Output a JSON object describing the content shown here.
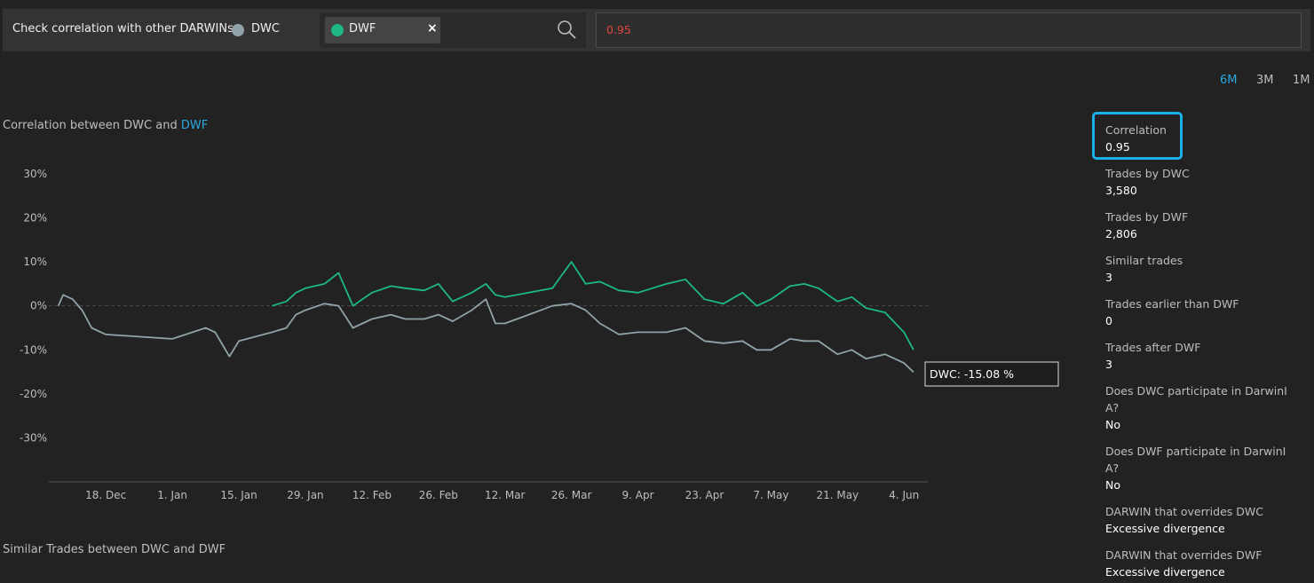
{
  "toolbar": {
    "label": "Check correlation with other DARWINs:",
    "close": "×",
    "input_value": "0.95"
  },
  "periods": [
    "6M",
    "3M",
    "1M"
  ],
  "chart_data": {
    "type": "line",
    "title": "Correlation between DWC and",
    "title_highlight": "DWF",
    "x": [
      "8. Dec",
      "9. Dec",
      "11. Dec",
      "13. Dec",
      "15. Dec",
      "18. Dec",
      "25. Dec",
      "1. Jan",
      "8. Jan",
      "10. Jan",
      "13. Jan",
      "15. Jan",
      "22. Jan",
      "25. Jan",
      "27. Jan",
      "29. Jan",
      "2. Feb",
      "5. Feb",
      "8. Feb",
      "12. Feb",
      "16. Feb",
      "19. Feb",
      "23. Feb",
      "26. Feb",
      "1. Mar",
      "5. Mar",
      "8. Mar",
      "10. Mar",
      "12. Mar",
      "17. Mar",
      "22. Mar",
      "26. Mar",
      "29. Mar",
      "1. Apr",
      "5. Apr",
      "9. Apr",
      "15. Apr",
      "19. Apr",
      "23. Apr",
      "27. Apr",
      "1. May",
      "4. May",
      "7. May",
      "11. May",
      "14. May",
      "17. May",
      "21. May",
      "24. May",
      "27. May",
      "31. May",
      "4. Jun",
      "6. Jun"
    ],
    "series": [
      {
        "name": "DWC",
        "color": "#8fa3a8",
        "values": [
          0,
          2.5,
          1.5,
          -1,
          -5,
          -6.5,
          -7,
          -7.5,
          -5,
          -6,
          -11.5,
          -8,
          -6,
          -5,
          -2,
          -1,
          0.5,
          0,
          -5,
          -3,
          -2,
          -3,
          -3,
          -2,
          -3.5,
          -1,
          1.5,
          -4,
          -4,
          -2,
          0,
          0.5,
          -1,
          -4,
          -6.5,
          -6,
          -6,
          -5,
          -8,
          -8.5,
          -8,
          -10,
          -10,
          -7.5,
          -8,
          -8,
          -11,
          -10,
          -12,
          -11,
          -13,
          -15.08
        ]
      },
      {
        "name": "DWF",
        "color": "#1db884",
        "values": [
          null,
          null,
          null,
          null,
          null,
          null,
          null,
          null,
          null,
          null,
          null,
          null,
          0,
          1,
          3,
          4,
          5,
          7.5,
          0,
          3,
          4.5,
          4,
          3.5,
          5,
          1,
          3,
          5,
          2.5,
          2,
          3,
          4,
          10,
          5,
          5.5,
          3.5,
          3,
          5,
          6,
          1.5,
          0.5,
          3,
          0,
          1.5,
          4.5,
          5,
          4,
          1,
          2,
          -0.5,
          -1.5,
          -6,
          -10
        ]
      }
    ],
    "xlim": [
      "6. Dec",
      "9. Jun"
    ],
    "xticks": [
      "18. Dec",
      "1. Jan",
      "15. Jan",
      "29. Jan",
      "12. Feb",
      "26. Feb",
      "12. Mar",
      "26. Mar",
      "9. Apr",
      "23. Apr",
      "7. May",
      "21. May",
      "4. Jun"
    ],
    "ylim": [
      -40,
      32
    ],
    "yticks": [
      {
        "value": 30,
        "label": "30%"
      },
      {
        "value": 20,
        "label": "20%"
      },
      {
        "value": 10,
        "label": "10%"
      },
      {
        "value": 0,
        "label": "0%"
      },
      {
        "value": -10,
        "label": "-10%"
      },
      {
        "value": -20,
        "label": "-20%"
      },
      {
        "value": -30,
        "label": "-30%"
      }
    ],
    "grid": false,
    "tooltip": "DWC: -15.08 %"
  },
  "stats": [
    {
      "label": "Correlation",
      "value": "0.95"
    },
    {
      "label": "Trades by DWC",
      "value": "3,580"
    },
    {
      "label": "Trades by DWF",
      "value": "2,806"
    },
    {
      "label": "Similar trades",
      "value": "3"
    },
    {
      "label": "Trades earlier than DWF",
      "value": "0"
    },
    {
      "label": "Trades after DWF",
      "value": "3"
    },
    {
      "label": "Does DWC participate in DarwinIA?",
      "value": "No"
    },
    {
      "label": "Does DWF participate in DarwinIA?",
      "value": "No"
    },
    {
      "label": "DARWIN that overrides DWC",
      "value": "Excessive divergence"
    },
    {
      "label": "DARWIN that overrides DWF",
      "value": "Excessive divergence"
    }
  ],
  "footer_title": "Similar Trades between DWC and DWF"
}
